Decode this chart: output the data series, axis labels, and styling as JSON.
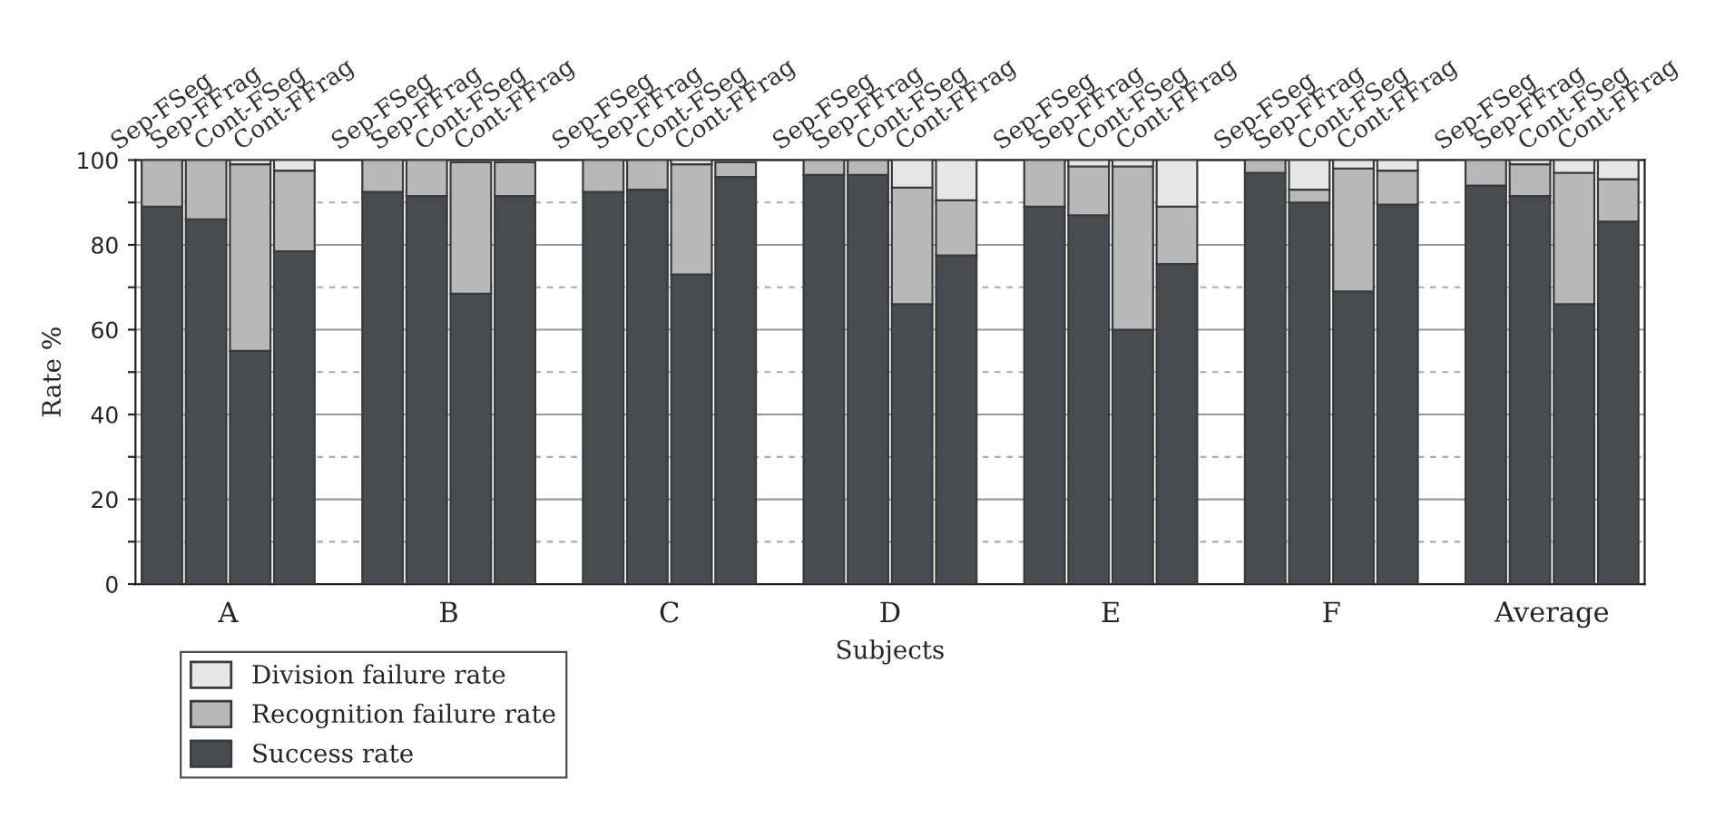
{
  "chart_data": {
    "type": "bar",
    "stacked": true,
    "xlabel": "Subjects",
    "ylabel": "Rate %",
    "categories": [
      "Sep-FSeg",
      "Sep-FFrag",
      "Cont-FSeg",
      "Cont-FFrag",
      null,
      "Sep-FSeg",
      "Sep-FFrag",
      "Cont-FSeg",
      "Cont-FFrag",
      null,
      "Sep-FSeg",
      "Sep-FFrag",
      "Cont-FSeg",
      "Cont-FFrag",
      null,
      "Sep-FSeg",
      "Sep-FFrag",
      "Cont-FSeg",
      "Cont-FFrag",
      null,
      "Sep-FSeg",
      "Sep-FFrag",
      "Cont-FSeg",
      "Cont-FFrag",
      null,
      "Sep-FSeg",
      "Sep-FFrag",
      "Cont-FSeg",
      "Cont-FFrag",
      null,
      "Sep-FSeg",
      "Sep-FFrag",
      "Cont-FSeg",
      "Cont-FFrag"
    ],
    "series": [
      {
        "name": "Success rate",
        "color": "#4a4b50",
        "values": [
          89,
          86,
          55,
          78.5,
          null,
          92.5,
          91.5,
          68.5,
          91.5,
          null,
          92.5,
          93,
          73,
          96,
          null,
          96.5,
          96.5,
          66,
          77.5,
          null,
          89,
          87,
          60,
          75.5,
          null,
          97,
          90,
          69,
          89.5,
          null,
          94,
          91.5,
          66,
          85.5
        ]
      },
      {
        "name": "Recognition failure rate",
        "color": "#b8b8b8",
        "values": [
          11,
          14,
          44,
          19,
          null,
          7.5,
          8.5,
          31,
          8,
          null,
          7.5,
          7,
          26,
          3.5,
          null,
          3.5,
          3.5,
          27.5,
          13,
          null,
          11,
          11.5,
          38.5,
          13.5,
          null,
          3,
          3,
          29,
          8,
          null,
          6,
          7.5,
          31,
          10
        ]
      },
      {
        "name": "Division failure rate",
        "color": "#e6e6e6",
        "values": [
          0,
          0,
          1,
          2.5,
          null,
          0,
          0,
          null,
          null,
          null,
          0,
          0,
          1,
          null,
          null,
          0,
          0,
          6.5,
          9.5,
          null,
          0,
          1.5,
          1.5,
          11,
          null,
          0,
          7,
          2,
          2.5,
          null,
          0,
          1,
          3,
          4.5
        ]
      }
    ],
    "annotations": [
      "A",
      "B",
      "C",
      "D",
      "E",
      "F",
      "Average"
    ],
    "ylim": [
      0,
      100
    ],
    "yticks": [
      0,
      {
        "value": 10,
        "label": null
      },
      20,
      {
        "value": 30,
        "label": null
      },
      40,
      {
        "value": 50,
        "label": null
      },
      60,
      {
        "value": 70,
        "label": null
      },
      80,
      {
        "value": 90,
        "label": null
      },
      100
    ],
    "grid": "y",
    "legend": "bottom left"
  }
}
